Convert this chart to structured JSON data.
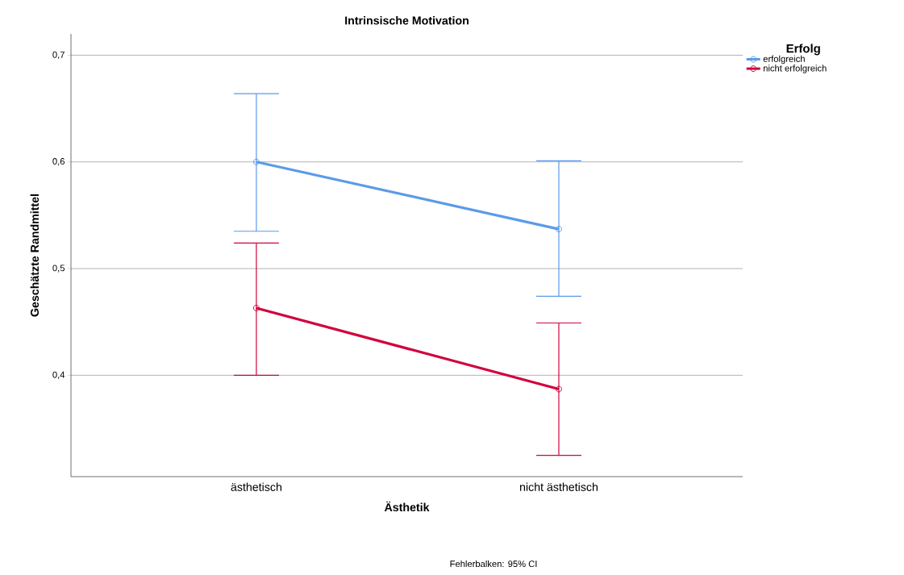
{
  "chart_data": {
    "type": "line",
    "title": "Intrinsische Motivation",
    "xlabel": "Ästhetik",
    "ylabel": "Geschätzte Randmittel",
    "legend_title": "Erfolg",
    "categories": [
      "ästhetisch",
      "nicht ästhetisch"
    ],
    "series": [
      {
        "name": "erfolgreich",
        "color": "#5b9be8",
        "values": [
          0.6,
          0.537
        ],
        "errors": [
          [
            0.535,
            0.664
          ],
          [
            0.474,
            0.601
          ]
        ]
      },
      {
        "name": "nicht erfolgreich",
        "color": "#d1043c",
        "values": [
          0.463,
          0.387
        ],
        "errors": [
          [
            0.4,
            0.524
          ],
          [
            0.325,
            0.449
          ]
        ]
      }
    ],
    "ylim": [
      0.305,
      0.72
    ],
    "yticks": [
      {
        "value": 0.4,
        "label": "0,4"
      },
      {
        "value": 0.5,
        "label": "0,5"
      },
      {
        "value": 0.6,
        "label": "0,6"
      },
      {
        "value": 0.7,
        "label": "0,7"
      }
    ],
    "grid": "y",
    "legend": "top right",
    "marker": "circle",
    "line_style": "solid",
    "annotations": [
      "Fehlerbalken: 95% CI"
    ]
  }
}
